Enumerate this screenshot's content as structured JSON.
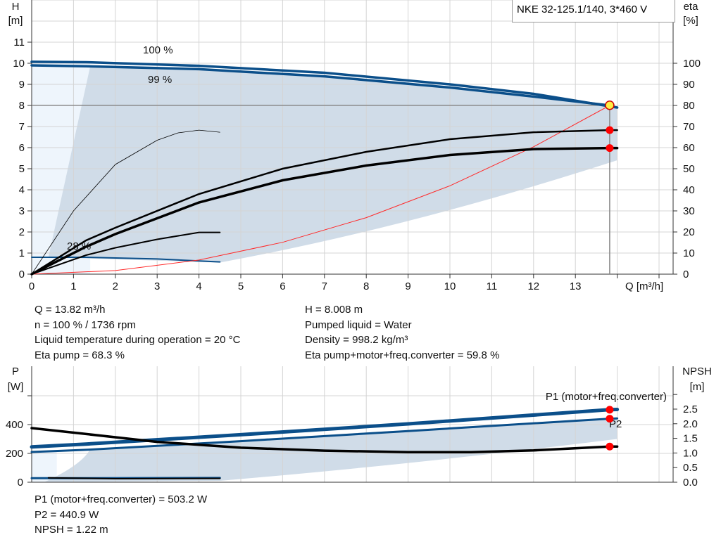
{
  "title_box": "NKE 32-125.1/140, 3*460 V",
  "colors": {
    "curve_blue": "#0b4f8a",
    "shade": "#d0dce8",
    "shade_light": "#eef5fc",
    "system_curve": "#ff2a2a",
    "marker": "#ff0000",
    "marker_duty": "#ffee44"
  },
  "chart_data": [
    {
      "type": "line",
      "xlabel": "Q [m³/h]",
      "ylabel_left": [
        "H",
        "[m]"
      ],
      "ylabel_right": [
        "eta",
        "[%]"
      ],
      "xlim": [
        0,
        15
      ],
      "ylim_left": [
        0,
        13
      ],
      "ylim_right": [
        0,
        130
      ],
      "x_ticks": [
        "0",
        "1",
        "2",
        "3",
        "4",
        "5",
        "6",
        "7",
        "8",
        "9",
        "10",
        "11",
        "12",
        "13"
      ],
      "y_ticks_left": [
        "0",
        "1",
        "2",
        "3",
        "4",
        "5",
        "6",
        "7",
        "8",
        "9",
        "10",
        "11"
      ],
      "y_ticks_right": [
        "0",
        "10",
        "20",
        "30",
        "40",
        "50",
        "60",
        "70",
        "80",
        "90",
        "100"
      ],
      "grid": true,
      "curve_labels": [
        {
          "text": "100 %",
          "q": 3,
          "h": 10.5
        },
        {
          "text": "99 %",
          "q": 3,
          "h": 10.3
        },
        {
          "text": "28 %",
          "q": 1.15,
          "h": 1.2
        }
      ],
      "series": [
        {
          "axis": "left",
          "style": "qh",
          "points": [
            [
              0,
              10.07
            ],
            [
              1.3,
              10.05
            ],
            [
              4,
              9.88
            ],
            [
              7,
              9.55
            ],
            [
              10,
              9.0
            ],
            [
              12,
              8.55
            ],
            [
              14,
              7.9
            ]
          ]
        },
        {
          "axis": "left",
          "style": "qh",
          "points": [
            [
              0,
              9.9
            ],
            [
              1.3,
              9.86
            ],
            [
              4,
              9.72
            ],
            [
              7,
              9.38
            ],
            [
              10,
              8.85
            ],
            [
              12,
              8.42
            ],
            [
              13.82,
              8.0
            ]
          ]
        },
        {
          "axis": "left",
          "style": "qh-thin",
          "points": [
            [
              0,
              0.8
            ],
            [
              1.3,
              0.8
            ],
            [
              3,
              0.72
            ],
            [
              4.5,
              0.58
            ]
          ]
        },
        {
          "axis": "left",
          "style": "system",
          "points": [
            [
              0,
              0
            ],
            [
              2,
              0.17
            ],
            [
              4,
              0.67
            ],
            [
              6,
              1.51
            ],
            [
              8,
              2.68
            ],
            [
              10,
              4.19
            ],
            [
              12,
              6.04
            ],
            [
              13.82,
              8.0
            ]
          ]
        },
        {
          "axis": "right",
          "style": "eta",
          "points": [
            [
              0,
              0
            ],
            [
              1.3,
              16
            ],
            [
              2,
              22
            ],
            [
              4,
              38
            ],
            [
              6,
              50
            ],
            [
              8,
              58
            ],
            [
              10,
              64
            ],
            [
              12,
              67.3
            ],
            [
              13.82,
              68.3
            ],
            [
              14,
              68.3
            ]
          ]
        },
        {
          "axis": "right",
          "style": "eta-thick",
          "points": [
            [
              0,
              0
            ],
            [
              1.3,
              13
            ],
            [
              2,
              19
            ],
            [
              4,
              34
            ],
            [
              6,
              44.5
            ],
            [
              8,
              51.5
            ],
            [
              10,
              56.5
            ],
            [
              12,
              59.3
            ],
            [
              13.82,
              59.8
            ],
            [
              14,
              59.8
            ]
          ]
        },
        {
          "axis": "right",
          "style": "eta-hair",
          "points": [
            [
              0,
              0
            ],
            [
              0.5,
              15
            ],
            [
              1,
              30
            ],
            [
              2,
              52
            ],
            [
              3,
              63.5
            ],
            [
              3.5,
              67
            ],
            [
              4,
              68.3
            ],
            [
              4.5,
              67.3
            ]
          ]
        },
        {
          "axis": "right",
          "style": "eta-thin",
          "points": [
            [
              0,
              0
            ],
            [
              1.3,
              9
            ],
            [
              2,
              12.5
            ],
            [
              3,
              16.5
            ],
            [
              4,
              19.8
            ],
            [
              4.5,
              19.8
            ]
          ]
        }
      ],
      "duty_point": {
        "q": 13.82,
        "h": 8.008,
        "eta_pump": 68.3,
        "eta_total": 59.8
      }
    },
    {
      "type": "line",
      "ylabel_left": [
        "P",
        "[W]"
      ],
      "ylabel_right": [
        "NPSH",
        "[m]"
      ],
      "xlim": [
        0,
        15
      ],
      "ylim_left": [
        0,
        800
      ],
      "ylim_right": [
        0,
        3.0
      ],
      "y_ticks_left": [
        "0",
        "200",
        "400"
      ],
      "y_ticks_right": [
        "0.0",
        "0.5",
        "1.0",
        "1.5",
        "2.0",
        "2.5"
      ],
      "grid": true,
      "curve_labels": [
        {
          "text": "P1 (motor+freq.converter)"
        },
        {
          "text": "P2"
        }
      ],
      "series": [
        {
          "name": "P1 (motor+freq.converter)",
          "axis": "left",
          "style": "p1",
          "points": [
            [
              0,
              245
            ],
            [
              1.3,
              265
            ],
            [
              5,
              330
            ],
            [
              9,
              405
            ],
            [
              13.82,
              503.2
            ],
            [
              14,
              505
            ]
          ]
        },
        {
          "name": "P2",
          "axis": "left",
          "style": "p2",
          "points": [
            [
              0,
              210
            ],
            [
              1.3,
              225
            ],
            [
              5,
              285
            ],
            [
              9,
              355
            ],
            [
              13.82,
              440.9
            ],
            [
              14,
              443
            ]
          ]
        },
        {
          "axis": "right",
          "style": "npsh",
          "points": [
            [
              0,
              1.85
            ],
            [
              1.3,
              1.65
            ],
            [
              3,
              1.38
            ],
            [
              5,
              1.18
            ],
            [
              7,
              1.08
            ],
            [
              9,
              1.03
            ],
            [
              10.5,
              1.03
            ],
            [
              12,
              1.09
            ],
            [
              13.82,
              1.22
            ],
            [
              14,
              1.22
            ]
          ]
        },
        {
          "axis": "left",
          "style": "p-low",
          "points": [
            [
              0,
              28
            ],
            [
              0.4,
              28
            ],
            [
              4.5,
              30
            ]
          ]
        },
        {
          "axis": "right",
          "style": "npsh-low",
          "points": [
            [
              0.4,
              0.15
            ],
            [
              2,
              0.12
            ],
            [
              4.5,
              0.13
            ]
          ]
        }
      ],
      "duty_point": {
        "q": 13.82,
        "p1": 503.2,
        "p2": 440.9,
        "npsh": 1.22
      }
    }
  ],
  "results": {
    "left": [
      "Q = 13.82 m³/h",
      "n = 100 % / 1736 rpm",
      "Liquid temperature during operation = 20 °C",
      "Eta pump = 68.3 %"
    ],
    "right": [
      "H = 8.008 m",
      "Pumped liquid = Water",
      "Density = 998.2 kg/m³",
      "Eta pump+motor+freq.converter = 59.8 %"
    ],
    "power": [
      "P1 (motor+freq.converter) = 503.2 W",
      "P2 = 440.9 W",
      "NPSH = 1.22 m"
    ]
  }
}
